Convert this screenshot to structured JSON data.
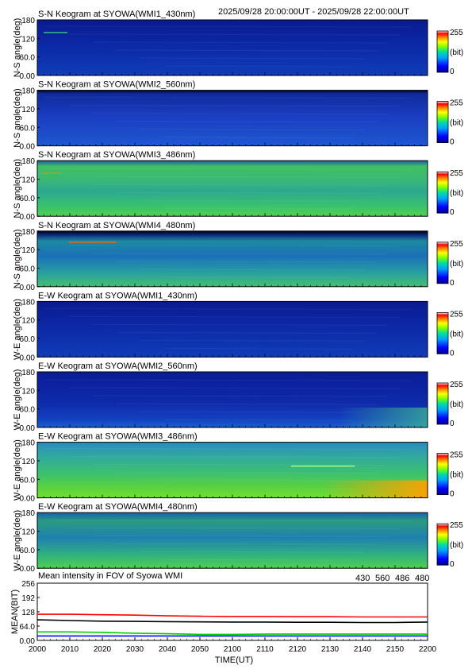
{
  "header": {
    "time_range": "2025/09/28 20:00:00UT - 2025/09/28 22:00:00UT"
  },
  "keograms": [
    {
      "title": "S-N Keogram at SYOWA(WMI1_430nm)",
      "ylabel": "N-S angle(deg)",
      "level": "low"
    },
    {
      "title": "S-N Keogram at SYOWA(WMI2_560nm)",
      "ylabel": "N-S angle(deg)",
      "level": "low-dark-top"
    },
    {
      "title": "S-N Keogram at SYOWA(WMI3_486nm)",
      "ylabel": "N-S angle(deg)",
      "level": "high"
    },
    {
      "title": "S-N Keogram at SYOWA(WMI4_480nm)",
      "ylabel": "N-S angle(deg)",
      "level": "mid-dark-top"
    },
    {
      "title": "E-W Keogram at SYOWA(WMI1_430nm)",
      "ylabel": "W-E angle(deg)",
      "level": "low"
    },
    {
      "title": "E-W Keogram at SYOWA(WMI2_560nm)",
      "ylabel": "W-E angle(deg)",
      "level": "low-glow"
    },
    {
      "title": "E-W Keogram at SYOWA(WMI3_486nm)",
      "ylabel": "W-E angle(deg)",
      "level": "high-glow"
    },
    {
      "title": "E-W Keogram at SYOWA(WMI4_480nm)",
      "ylabel": "W-E angle(deg)",
      "level": "mid-high"
    }
  ],
  "keogram_yticks": [
    "0.00",
    "60.0",
    "120",
    "180"
  ],
  "keogram_ytick_values": [
    0,
    60,
    120,
    180
  ],
  "colorbar": {
    "max_label": "255",
    "unit_label": "(bit)",
    "min_label": "0",
    "colors": [
      "#00008f",
      "#0000ff",
      "#00a0ff",
      "#00e0a0",
      "#80ff00",
      "#ffff00",
      "#ff8000",
      "#ff0000",
      "#ffffff"
    ]
  },
  "chart_data": {
    "type": "line",
    "title": "Mean intensity in FOV of Syowa WMI",
    "xlabel": "TIME(UT)",
    "ylabel": "MEAN(BIT)",
    "xlim": [
      2000,
      2200
    ],
    "ylim": [
      0,
      256
    ],
    "x_ticks": [
      "2000",
      "2010",
      "2020",
      "2030",
      "2040",
      "2050",
      "2100",
      "2110",
      "2120",
      "2130",
      "2140",
      "2150",
      "2200"
    ],
    "y_ticks": [
      "0.00",
      "64.0",
      "128",
      "192",
      "256"
    ],
    "y_tick_values": [
      0,
      64,
      128,
      192,
      256
    ],
    "legend": [
      {
        "name": "430",
        "color": "#0000ff"
      },
      {
        "name": "560",
        "color": "#00cc00"
      },
      {
        "name": "486",
        "color": "#ff0000"
      },
      {
        "name": "480",
        "color": "#000000"
      }
    ],
    "series": [
      {
        "name": "430",
        "color": "#0000ff",
        "values": [
          20,
          20,
          20,
          20,
          20,
          20,
          20,
          20,
          20,
          20,
          20,
          20,
          20
        ]
      },
      {
        "name": "560",
        "color": "#00cc00",
        "values": [
          38,
          38,
          36,
          32,
          30,
          27,
          27,
          28,
          28,
          28,
          28,
          28,
          28
        ]
      },
      {
        "name": "486",
        "color": "#ff0000",
        "values": [
          117,
          117,
          115,
          113,
          110,
          108,
          107,
          107,
          106,
          106,
          105,
          105,
          105
        ]
      },
      {
        "name": "480",
        "color": "#000000",
        "values": [
          92,
          89,
          86,
          85,
          84,
          83,
          82,
          82,
          81,
          81,
          80,
          80,
          82
        ]
      }
    ]
  }
}
